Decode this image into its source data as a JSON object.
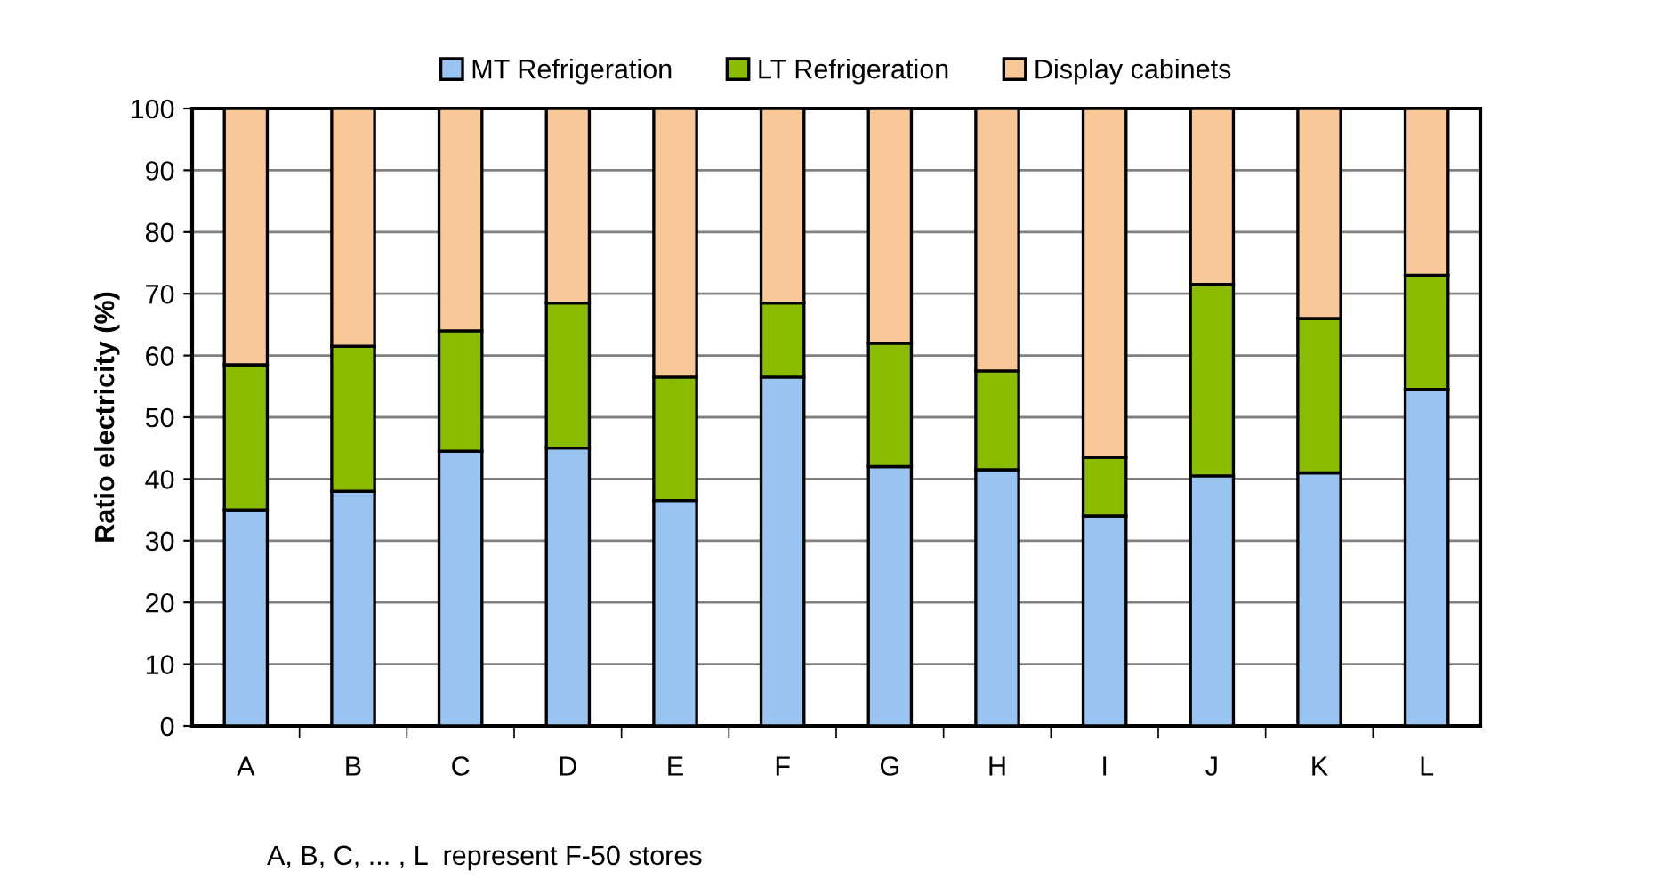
{
  "chart_data": {
    "type": "bar",
    "stacked": true,
    "categories": [
      "A",
      "B",
      "C",
      "D",
      "E",
      "F",
      "G",
      "H",
      "I",
      "J",
      "K",
      "L"
    ],
    "series": [
      {
        "name": "MT Refrigeration",
        "color": "#99c4f2",
        "values": [
          35,
          38,
          44.5,
          45,
          36.5,
          56.5,
          42,
          41.5,
          34,
          40.5,
          41,
          54.5
        ]
      },
      {
        "name": "LT Refrigeration",
        "color": "#8cbc00",
        "values": [
          23.5,
          23.5,
          19.5,
          23.5,
          20,
          12,
          20,
          16,
          9.5,
          31,
          25,
          18.5
        ]
      },
      {
        "name": "Display cabinets",
        "color": "#f8c898",
        "values": [
          41.5,
          38.5,
          36,
          31.5,
          43.5,
          31.5,
          38,
          42.5,
          56.5,
          28.5,
          34,
          27
        ]
      }
    ],
    "ylabel": "Ratio electricity (%)",
    "ylim": [
      0,
      100
    ],
    "yticks": [
      0,
      10,
      20,
      30,
      40,
      50,
      60,
      70,
      80,
      90,
      100
    ],
    "grid": "y",
    "legend": "top",
    "annotations": [
      "A, B, C, ... , L  represent F-50 stores"
    ]
  }
}
